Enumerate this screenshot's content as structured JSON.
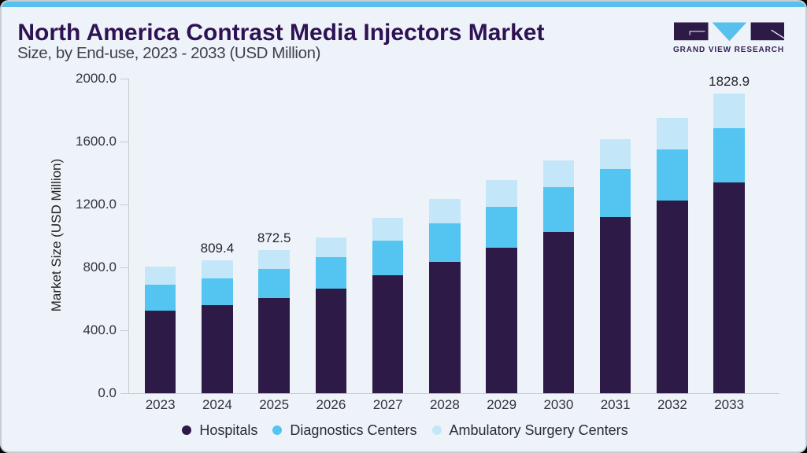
{
  "header": {
    "title": "North America Contrast Media Injectors Market",
    "subtitle": "Size, by End-use, 2023 - 2033 (USD Million)"
  },
  "logo": {
    "brand": "GRAND VIEW RESEARCH",
    "colors": {
      "dark": "#2e1a47",
      "accent": "#57c0ec"
    }
  },
  "chart_data": {
    "type": "bar",
    "stacked": true,
    "title": "North America Contrast Media Injectors Market Size, by End-use, 2023 - 2033 (USD Million)",
    "categories": [
      "2023",
      "2024",
      "2025",
      "2026",
      "2027",
      "2028",
      "2029",
      "2030",
      "2031",
      "2032",
      "2033"
    ],
    "series": [
      {
        "name": "Hospitals",
        "color": "#2e1a47",
        "values": [
          501.4,
          534.1,
          580.3,
          635.6,
          721.2,
          801.4,
          886.5,
          982.7,
          1075.7,
          1175.0,
          1286.1
        ]
      },
      {
        "name": "Diagnostics Centers",
        "color": "#53c5f0",
        "values": [
          157.7,
          163.5,
          177.9,
          192.8,
          210.3,
          237.1,
          249.3,
          273.3,
          294.5,
          315.4,
          333.6
        ]
      },
      {
        "name": "Ambulatory Surgery Centers",
        "color": "#c3e7f8",
        "values": [
          112.1,
          111.8,
          114.3,
          123.5,
          140.1,
          149.0,
          165.2,
          165.2,
          180.3,
          189.8,
          209.2
        ]
      }
    ],
    "totals": [
      771.2,
      809.4,
      872.5,
      951.9,
      1071.6,
      1187.5,
      1301.0,
      1421.2,
      1550.5,
      1679.8,
      1828.9
    ],
    "annotations": [
      {
        "category": "2024",
        "text": "809.4"
      },
      {
        "category": "2025",
        "text": "872.5"
      },
      {
        "category": "2033",
        "text": "1828.9"
      }
    ],
    "xlabel": "",
    "ylabel": "Market Size (USD Million)",
    "ylim": [
      0,
      2000
    ],
    "ytick_labels": [
      "0.0",
      "400.0",
      "800.0",
      "1200.0",
      "1600.0",
      "2000.0"
    ],
    "grid": false,
    "legend_position": "bottom"
  }
}
